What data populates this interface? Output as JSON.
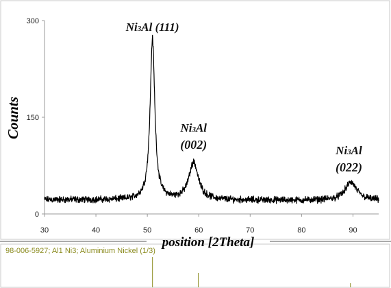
{
  "chart_data": {
    "type": "line",
    "xlabel": "position [2Theta]",
    "ylabel": "Counts",
    "xlim": [
      30,
      95
    ],
    "ylim": [
      0,
      300
    ],
    "x_ticks": [
      30,
      40,
      50,
      60,
      70,
      80,
      90
    ],
    "y_ticks": [
      0,
      150,
      300
    ],
    "grid": false,
    "series_profile": {
      "baseline": 22,
      "noise": 4,
      "peaks": [
        {
          "center": 51.0,
          "height": 250,
          "width": 0.55
        },
        {
          "center": 59.0,
          "height": 58,
          "width": 1.1
        },
        {
          "center": 89.6,
          "height": 28,
          "width": 1.4
        }
      ]
    },
    "annotations": [
      {
        "phase": "Ni",
        "sub": "3",
        "rest": "Al",
        "hkl": "(111)",
        "x": 51.0
      },
      {
        "phase": "Ni",
        "sub": "3",
        "rest": "Al",
        "hkl": "(002)",
        "x": 59.0
      },
      {
        "phase": "Ni",
        "sub": "3",
        "rest": "Al",
        "hkl": "(022)",
        "x": 89.6
      }
    ],
    "reference": {
      "label": "98-006-5927; Al1 Ni3; Aluminium Nickel (1/3)",
      "lines": [
        51.0,
        59.9,
        89.5
      ],
      "color": "#8b8b1f"
    }
  }
}
